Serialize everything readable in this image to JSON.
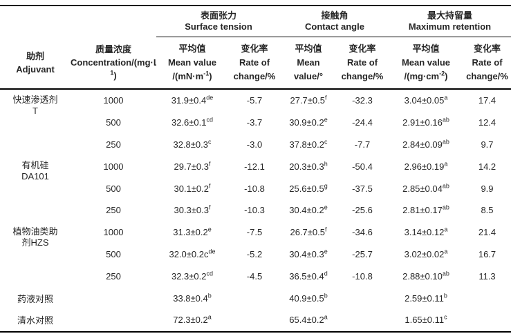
{
  "page": {
    "background_color": "#ffffff",
    "text_color": "#262626",
    "rule_color": "#000000"
  },
  "header": {
    "col_adjuvant": "助剂\nAdjuvant",
    "col_concentration": "质量浓度\nConcentration/(mg·L^{-1})",
    "groups": [
      {
        "title": "表面张力\nSurface tension",
        "mean": "平均值\nMean value\n/(mN·m^{-1})",
        "rate": "变化率\nRate of\nchange/%"
      },
      {
        "title": "接触角\nContact angle",
        "mean": "平均值\nMean\nvalue/°",
        "rate": "变化率\nRate of\nchange/%"
      },
      {
        "title": "最大持留量\nMaximum retention",
        "mean": "平均值\nMean value\n/(mg·cm^{-2})",
        "rate": "变化率\nRate of\nchange/%"
      }
    ]
  },
  "rows": [
    {
      "adjuvant": "快速渗透剂\nT",
      "conc": "1000",
      "st_mean": "31.9±0.4^{de}",
      "st_rate": "-5.7",
      "ca_mean": "27.7±0.5^{f}",
      "ca_rate": "-32.3",
      "mr_mean": "3.04±0.05^{a}",
      "mr_rate": "17.4"
    },
    {
      "conc": "500",
      "st_mean": "32.6±0.1^{cd}",
      "st_rate": "-3.7",
      "ca_mean": "30.9±0.2^{e}",
      "ca_rate": "-24.4",
      "mr_mean": "2.91±0.16^{ab}",
      "mr_rate": "12.4"
    },
    {
      "conc": "250",
      "st_mean": "32.8±0.3^{c}",
      "st_rate": "-3.0",
      "ca_mean": "37.8±0.2^{c}",
      "ca_rate": "-7.7",
      "mr_mean": "2.84±0.09^{ab}",
      "mr_rate": "9.7"
    },
    {
      "adjuvant": "有机硅\nDA101",
      "conc": "1000",
      "st_mean": "29.7±0.3^{f}",
      "st_rate": "-12.1",
      "ca_mean": "20.3±0.3^{h}",
      "ca_rate": "-50.4",
      "mr_mean": "2.96±0.19^{a}",
      "mr_rate": "14.2"
    },
    {
      "conc": "500",
      "st_mean": "30.1±0.2^{f}",
      "st_rate": "-10.8",
      "ca_mean": "25.6±0.5^{g}",
      "ca_rate": "-37.5",
      "mr_mean": "2.85±0.04^{ab}",
      "mr_rate": "9.9"
    },
    {
      "conc": "250",
      "st_mean": "30.3±0.3^{f}",
      "st_rate": "-10.3",
      "ca_mean": "30.4±0.2^{e}",
      "ca_rate": "-25.6",
      "mr_mean": "2.81±0.17^{ab}",
      "mr_rate": "8.5"
    },
    {
      "adjuvant": "植物油类助\n剂HZS",
      "conc": "1000",
      "st_mean": "31.3±0.2^{e}",
      "st_rate": "-7.5",
      "ca_mean": "26.7±0.5^{f}",
      "ca_rate": "-34.6",
      "mr_mean": "3.14±0.12^{a}",
      "mr_rate": "21.4"
    },
    {
      "conc": "500",
      "st_mean": "32.0±0.2c^{de}",
      "st_rate": "-5.2",
      "ca_mean": "30.4±0.3^{e}",
      "ca_rate": "-25.7",
      "mr_mean": "3.02±0.02^{a}",
      "mr_rate": "16.7"
    },
    {
      "conc": "250",
      "st_mean": "32.3±0.2^{cd}",
      "st_rate": "-4.5",
      "ca_mean": "36.5±0.4^{d}",
      "ca_rate": "-10.8",
      "mr_mean": "2.88±0.10^{ab}",
      "mr_rate": "11.3"
    },
    {
      "adjuvant": "药液对照",
      "st_mean": "33.8±0.4^{b}",
      "ca_mean": "40.9±0.5^{b}",
      "mr_mean": "2.59±0.11^{b}"
    },
    {
      "adjuvant": "清水对照",
      "st_mean": "72.3±0.2^{a}",
      "ca_mean": "65.4±0.2^{a}",
      "mr_mean": "1.65±0.11^{c}"
    }
  ]
}
